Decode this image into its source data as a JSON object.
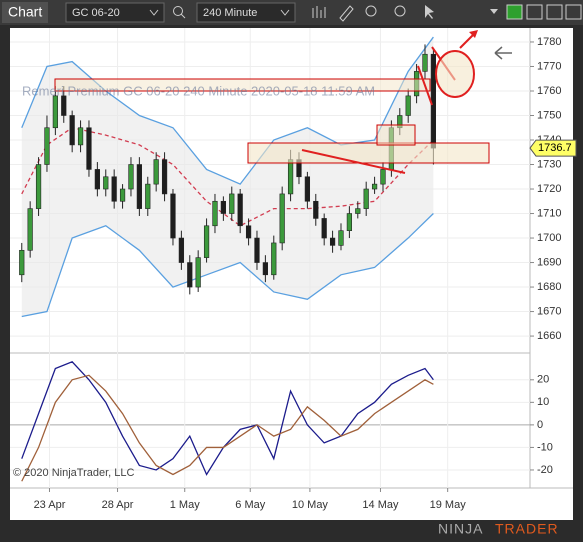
{
  "toolbar": {
    "tab": "Chart",
    "instrument": "GC 06-20",
    "interval": "240 Minute"
  },
  "chart_data": {
    "type": "candlestick",
    "watermark": "Remeri Premium  GC 06-20  240 Minute  2020-05-18 11:59 AM",
    "copyright": "© 2020 NinjaTrader, LLC",
    "logo": [
      "NINJA",
      "TRADER"
    ],
    "x": [
      0,
      1,
      2,
      3,
      4,
      5,
      6,
      7,
      8,
      9,
      10,
      11,
      12,
      13,
      14,
      15,
      16,
      17,
      18,
      19,
      20,
      21,
      22,
      23,
      24,
      25,
      26,
      27,
      28,
      29,
      30,
      31,
      32,
      33,
      34,
      35,
      36,
      37,
      38,
      39,
      40,
      41,
      42,
      43,
      44,
      45,
      46,
      47,
      48,
      49
    ],
    "open": [
      1685,
      1695,
      1712,
      1730,
      1745,
      1758,
      1750,
      1738,
      1745,
      1728,
      1720,
      1725,
      1715,
      1720,
      1730,
      1712,
      1722,
      1732,
      1718,
      1700,
      1690,
      1680,
      1692,
      1705,
      1715,
      1710,
      1718,
      1705,
      1700,
      1690,
      1685,
      1698,
      1718,
      1732,
      1725,
      1715,
      1708,
      1700,
      1697,
      1703,
      1710,
      1712,
      1720,
      1722,
      1728,
      1745,
      1750,
      1758,
      1768,
      1775
    ],
    "high": [
      1698,
      1715,
      1733,
      1750,
      1762,
      1762,
      1752,
      1748,
      1748,
      1731,
      1728,
      1728,
      1722,
      1733,
      1733,
      1725,
      1735,
      1735,
      1720,
      1703,
      1693,
      1695,
      1708,
      1718,
      1717,
      1721,
      1720,
      1708,
      1703,
      1693,
      1701,
      1721,
      1736,
      1735,
      1727,
      1718,
      1710,
      1703,
      1706,
      1713,
      1715,
      1723,
      1725,
      1731,
      1748,
      1753,
      1761,
      1771,
      1779,
      1777
    ],
    "low": [
      1682,
      1692,
      1709,
      1727,
      1742,
      1747,
      1735,
      1735,
      1725,
      1717,
      1717,
      1712,
      1712,
      1717,
      1709,
      1709,
      1719,
      1715,
      1697,
      1687,
      1677,
      1678,
      1690,
      1702,
      1707,
      1707,
      1702,
      1697,
      1687,
      1682,
      1683,
      1695,
      1715,
      1722,
      1712,
      1705,
      1697,
      1694,
      1695,
      1700,
      1708,
      1709,
      1718,
      1719,
      1725,
      1742,
      1747,
      1755,
      1765,
      1730
    ],
    "close": [
      1695,
      1712,
      1730,
      1745,
      1758,
      1750,
      1738,
      1745,
      1728,
      1720,
      1725,
      1715,
      1720,
      1730,
      1712,
      1722,
      1732,
      1718,
      1700,
      1690,
      1680,
      1692,
      1705,
      1715,
      1710,
      1718,
      1705,
      1700,
      1690,
      1685,
      1698,
      1718,
      1732,
      1725,
      1715,
      1708,
      1700,
      1697,
      1703,
      1710,
      1712,
      1720,
      1722,
      1728,
      1745,
      1750,
      1758,
      1768,
      1775,
      1736.7
    ],
    "up_color": "#3c9a3c",
    "down_color": "#1e1e1e",
    "bands": [
      {
        "name": "Upper",
        "color": "#5aa0e0",
        "x": [
          0,
          3,
          6,
          10,
          14,
          18,
          22,
          26,
          30,
          34,
          38,
          42,
          46,
          49
        ],
        "values": [
          1745,
          1770,
          1772,
          1760,
          1750,
          1745,
          1728,
          1722,
          1740,
          1745,
          1738,
          1740,
          1768,
          1782
        ]
      },
      {
        "name": "Middle",
        "color": "#d23c50",
        "x": [
          0,
          3,
          6,
          10,
          14,
          18,
          22,
          26,
          30,
          34,
          38,
          42,
          46,
          49
        ],
        "values": [
          1718,
          1738,
          1745,
          1742,
          1738,
          1730,
          1715,
          1705,
          1712,
          1712,
          1713,
          1715,
          1730,
          1740
        ]
      },
      {
        "name": "Lower",
        "color": "#5aa0e0",
        "x": [
          0,
          3,
          6,
          10,
          14,
          18,
          22,
          26,
          30,
          34,
          38,
          42,
          46,
          49
        ],
        "values": [
          1668,
          1670,
          1700,
          1705,
          1695,
          1680,
          1685,
          1690,
          1678,
          1675,
          1685,
          1688,
          1700,
          1710
        ]
      }
    ],
    "oscillator": [
      {
        "name": "Fast",
        "color": "#1c1c8c",
        "x": [
          0,
          2,
          4,
          6,
          8,
          10,
          12,
          14,
          16,
          18,
          20,
          22,
          24,
          26,
          28,
          30,
          32,
          34,
          36,
          38,
          40,
          42,
          44,
          46,
          48,
          49
        ],
        "values": [
          -15,
          5,
          25,
          28,
          20,
          10,
          -5,
          -18,
          -20,
          -15,
          -5,
          -22,
          -10,
          -2,
          0,
          -15,
          15,
          0,
          -8,
          -5,
          5,
          10,
          18,
          22,
          25,
          20
        ]
      },
      {
        "name": "Slow",
        "color": "#a0603a",
        "x": [
          0,
          2,
          4,
          6,
          8,
          10,
          12,
          14,
          16,
          18,
          20,
          22,
          24,
          26,
          28,
          30,
          32,
          34,
          36,
          38,
          40,
          42,
          44,
          46,
          48,
          49
        ],
        "values": [
          -25,
          -10,
          10,
          20,
          22,
          15,
          5,
          -8,
          -18,
          -22,
          -18,
          -10,
          -10,
          -5,
          0,
          -5,
          -2,
          8,
          2,
          -5,
          -2,
          5,
          10,
          15,
          20,
          18
        ]
      }
    ],
    "xlim": [
      -1.4,
      60.5
    ],
    "xticks": [
      {
        "value": 3.3,
        "label": "23 Apr"
      },
      {
        "value": 11.4,
        "label": "28 Apr"
      },
      {
        "value": 19.4,
        "label": "1 May"
      },
      {
        "value": 27.2,
        "label": "6 May"
      },
      {
        "value": 34.3,
        "label": "10 May"
      },
      {
        "value": 42.7,
        "label": "14 May"
      },
      {
        "value": 50.7,
        "label": "19 May"
      }
    ],
    "ylim": [
      1653.5,
      1785.7
    ],
    "yticks": [
      1660,
      1670,
      1680,
      1690,
      1700,
      1710,
      1720,
      1730,
      1740,
      1750,
      1760,
      1770,
      1780
    ],
    "y2lim": [
      -28,
      31
    ],
    "y2ticks": [
      -20,
      -10,
      0,
      10,
      20
    ],
    "grid": true
  }
}
